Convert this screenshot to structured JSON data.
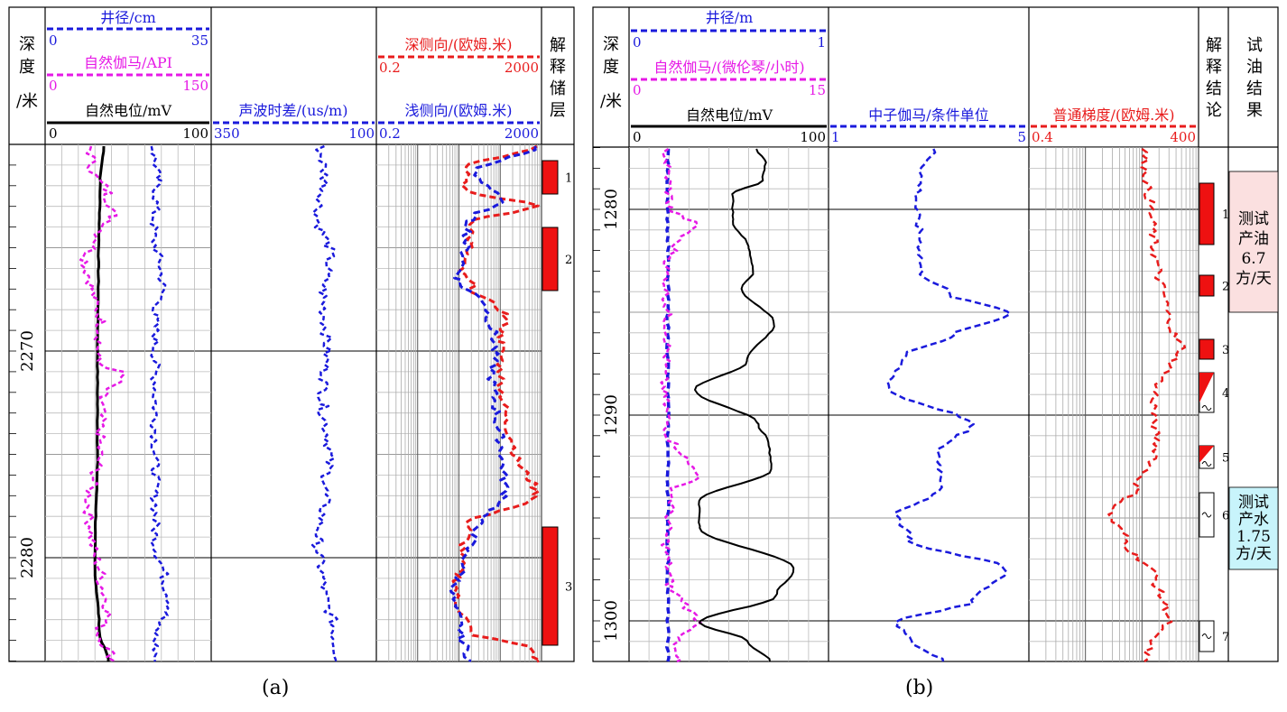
{
  "colors": {
    "black": "#000000",
    "blue": "#1a1adc",
    "magenta": "#e619e6",
    "red": "#e81c1c",
    "fill_red": "#ee1111",
    "oil_bg": "#fbe0e0",
    "water_bg": "#c8f4fb"
  },
  "panel_a": {
    "caption": "(a)",
    "depth_header": [
      "深",
      "度",
      "/米"
    ],
    "depth_ticks": [
      "2270",
      "2280"
    ],
    "track1": {
      "caliper": {
        "label": "井径/cm",
        "min": "0",
        "max": "35"
      },
      "gamma": {
        "label": "自然伽马/API",
        "min": "0",
        "max": "150"
      },
      "sp": {
        "label": "自然电位/mV",
        "min": "0",
        "max": "100"
      }
    },
    "track2": {
      "sonic": {
        "label": "声波时差/(us/m)",
        "min": "350",
        "max": "100"
      }
    },
    "track3": {
      "deep": {
        "label": "深侧向/(欧姆.米)",
        "min": "0.2",
        "max": "2000"
      },
      "shallow": {
        "label": "浅侧向/(欧姆.米)",
        "min": "0.2",
        "max": "2000"
      }
    },
    "interp_header": [
      "解",
      "释",
      "储",
      "层"
    ],
    "reservoirs": [
      "1",
      "2",
      "3"
    ]
  },
  "panel_b": {
    "caption": "(b)",
    "depth_header": [
      "深",
      "度",
      "/米"
    ],
    "depth_ticks": [
      "1280",
      "1290",
      "1300"
    ],
    "track1": {
      "caliper": {
        "label": "井径/m",
        "min": "0",
        "max": "1"
      },
      "gamma": {
        "label": "自然伽马/(微伦琴/小时)",
        "min": "0",
        "max": "15"
      },
      "sp": {
        "label": "自然电位/mV",
        "min": "0",
        "max": "100"
      }
    },
    "track2": {
      "neutron": {
        "label": "中子伽马/条件单位",
        "min": "1",
        "max": "5"
      }
    },
    "track3": {
      "gradient": {
        "label": "普通梯度/(欧姆.米)",
        "min": "0.4",
        "max": "400"
      }
    },
    "conclusion_header": [
      "解",
      "释",
      "结",
      "论"
    ],
    "test_header": [
      "试",
      "油",
      "结",
      "果"
    ],
    "layers": [
      "1",
      "2",
      "3",
      "4",
      "5",
      "6",
      "7"
    ],
    "tests": [
      {
        "lines": [
          "测试",
          "产油",
          "6.7",
          "方/天"
        ]
      },
      {
        "lines": [
          "测试",
          "产水",
          "1.75",
          "方/天"
        ]
      }
    ]
  }
}
